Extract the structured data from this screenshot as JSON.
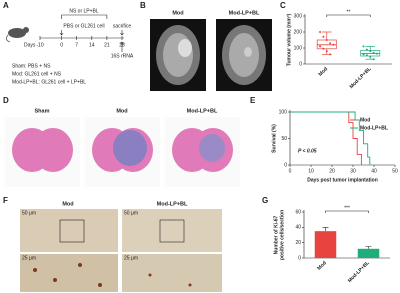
{
  "panels": {
    "A": {
      "label": "A",
      "top_label": "NS or LP+BL",
      "bottom_label": "PBS or GL261 cell",
      "end_label": "sacrifice",
      "assay": "16S rRNA",
      "days_prefix": "Days",
      "days": [
        "-10",
        "0",
        "7",
        "14",
        "21",
        "28"
      ],
      "groups": [
        "Sham: PBS + NS",
        "Mod: GL261 cell + NS",
        "Mod-LP+BL: GL261 cell + LP+BL"
      ]
    },
    "B": {
      "label": "B",
      "captions": [
        "Mod",
        "Mod-LP+BL"
      ]
    },
    "D": {
      "label": "D",
      "captions": [
        "Sham",
        "Mod",
        "Mod-LP+BL"
      ]
    },
    "F": {
      "label": "F",
      "captions": [
        "Mod",
        "Mod-LP+BL"
      ],
      "scales": [
        "50 μm",
        "25 μm",
        "50 μm",
        "25 μm"
      ]
    }
  },
  "chart_data": [
    {
      "type": "box",
      "label": "C",
      "ylabel": "Tumour volume (mm³)",
      "categories": [
        "Mod",
        "Mod-LP+BL"
      ],
      "boxes": [
        {
          "color": "#e8433f",
          "min": 60,
          "q1": 95,
          "median": 120,
          "q3": 150,
          "max": 200,
          "points": [
            200,
            170,
            150,
            130,
            120,
            110,
            95,
            80,
            60
          ]
        },
        {
          "color": "#1fae7a",
          "min": 30,
          "q1": 50,
          "median": 65,
          "q3": 85,
          "max": 110,
          "points": [
            110,
            90,
            80,
            70,
            65,
            60,
            55,
            45,
            30
          ]
        }
      ],
      "ylim": [
        0,
        300
      ],
      "yticks": [
        0,
        100,
        200,
        300
      ],
      "annotation": "**"
    },
    {
      "type": "line",
      "label": "E",
      "ylabel": "Survival (%)",
      "xlabel": "Days post tumor implantation",
      "series": [
        {
          "name": "Mod",
          "color": "#e8433f",
          "x": [
            0,
            28,
            28,
            30,
            30,
            32,
            32,
            34,
            34
          ],
          "values": [
            100,
            100,
            80,
            80,
            50,
            50,
            20,
            20,
            0
          ]
        },
        {
          "name": "Mod-LP+BL",
          "color": "#1fae7a",
          "x": [
            0,
            31,
            31,
            33,
            33,
            35,
            35,
            37,
            37,
            38,
            38
          ],
          "values": [
            100,
            100,
            85,
            85,
            65,
            65,
            40,
            40,
            15,
            15,
            0
          ]
        }
      ],
      "xlim": [
        0,
        50
      ],
      "xticks": [
        0,
        10,
        20,
        30,
        40,
        50
      ],
      "ylim": [
        0,
        100
      ],
      "yticks": [
        0,
        50,
        100
      ],
      "annotation": "P < 0.05"
    },
    {
      "type": "bar",
      "label": "G",
      "ylabel": [
        "Number of Ki-67",
        "positive cells/section"
      ],
      "categories": [
        "Mod",
        "Mod-LP+BL"
      ],
      "values": [
        35,
        12
      ],
      "errors": [
        5,
        3
      ],
      "colors": [
        "#e8433f",
        "#1fae7a"
      ],
      "ylim": [
        0,
        60
      ],
      "yticks": [
        0,
        20,
        40,
        60
      ],
      "annotation": "***"
    }
  ]
}
